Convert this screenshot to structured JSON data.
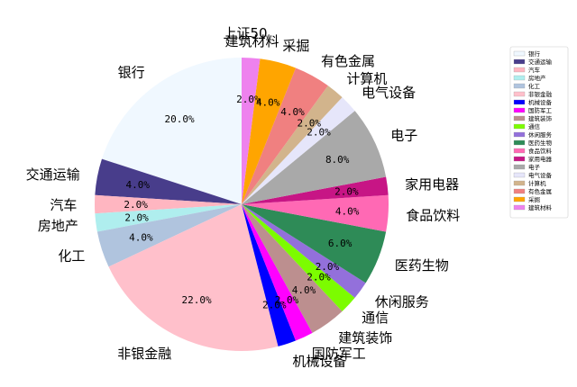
{
  "chart_data": {
    "type": "pie",
    "title": "上证50",
    "start_angle_deg": 90,
    "direction": "counterclockwise",
    "slices": [
      {
        "name": "银行",
        "value": 20.0,
        "pct_label": "20.0%",
        "color": "#f0f8ff"
      },
      {
        "name": "交通运输",
        "value": 4.0,
        "pct_label": "4.0%",
        "color": "#483d8b"
      },
      {
        "name": "汽车",
        "value": 2.0,
        "pct_label": "2.0%",
        "color": "#ffb6c1"
      },
      {
        "name": "房地产",
        "value": 2.0,
        "pct_label": "2.0%",
        "color": "#afeeee"
      },
      {
        "name": "化工",
        "value": 4.0,
        "pct_label": "4.0%",
        "color": "#b0c4de"
      },
      {
        "name": "非银金融",
        "value": 22.0,
        "pct_label": "22.0%",
        "color": "#ffc0cb"
      },
      {
        "name": "机械设备",
        "value": 2.0,
        "pct_label": "2.0%",
        "color": "#0000ff"
      },
      {
        "name": "国防军工",
        "value": 2.0,
        "pct_label": "2.0%",
        "color": "#ff00ff"
      },
      {
        "name": "建筑装饰",
        "value": 4.0,
        "pct_label": "4.0%",
        "color": "#bc8f8f"
      },
      {
        "name": "通信",
        "value": 2.0,
        "pct_label": "2.0%",
        "color": "#7cfc00"
      },
      {
        "name": "休闲服务",
        "value": 2.0,
        "pct_label": "2.0%",
        "color": "#9370db"
      },
      {
        "name": "医药生物",
        "value": 6.0,
        "pct_label": "6.0%",
        "color": "#2e8b57"
      },
      {
        "name": "食品饮料",
        "value": 4.0,
        "pct_label": "4.0%",
        "color": "#ff69b4"
      },
      {
        "name": "家用电器",
        "value": 2.0,
        "pct_label": "2.0%",
        "color": "#c71585"
      },
      {
        "name": "电子",
        "value": 8.0,
        "pct_label": "8.0%",
        "color": "#a9a9a9"
      },
      {
        "name": "电气设备",
        "value": 2.0,
        "pct_label": "2.0%",
        "color": "#e6e6fa"
      },
      {
        "name": "计算机",
        "value": 2.0,
        "pct_label": "2.0%",
        "color": "#d2b48c"
      },
      {
        "name": "有色金属",
        "value": 4.0,
        "pct_label": "4.0%",
        "color": "#f08080"
      },
      {
        "name": "采掘",
        "value": 4.0,
        "pct_label": "4.0%",
        "color": "#ffa500"
      },
      {
        "name": "建筑材料",
        "value": 2.0,
        "pct_label": "2.0%",
        "color": "#ee82ee"
      }
    ],
    "legend": {
      "placement": "right",
      "entries": [
        "银行",
        "交通运输",
        "汽车",
        "房地产",
        "化工",
        "非银金融",
        "机械设备",
        "国防军工",
        "建筑装饰",
        "通信",
        "休闲服务",
        "医药生物",
        "食品饮料",
        "家用电器",
        "电子",
        "电气设备",
        "计算机",
        "有色金属",
        "采掘",
        "建筑材料"
      ]
    }
  }
}
